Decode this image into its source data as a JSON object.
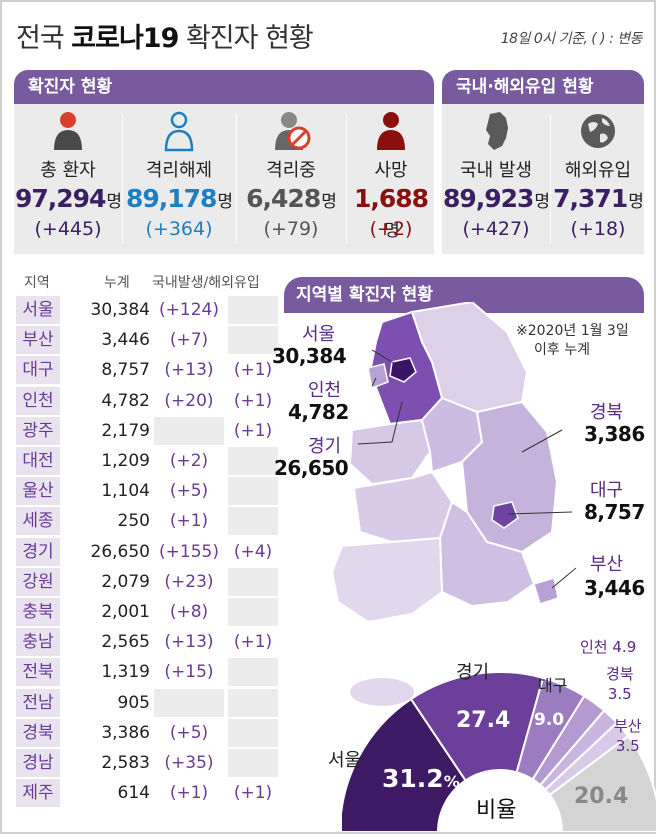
{
  "header": {
    "title_prefix": "전국",
    "title_bold": "코로나19",
    "title_suffix": "확진자 현황",
    "note": "18일 0시 기준, ( ) : 변동"
  },
  "confirmed_panel": {
    "title": "확진자 현황",
    "stats": [
      {
        "label": "총 환자",
        "value": "97,294",
        "unit": "명",
        "change": "(+445)",
        "color": "#3b1e63",
        "icon": "person-icon"
      },
      {
        "label": "격리해제",
        "value": "89,178",
        "unit": "명",
        "change": "(+364)",
        "color": "#1f7fc4",
        "icon": "person-outline-icon"
      },
      {
        "label": "격리중",
        "value": "6,428",
        "unit": "명",
        "change": "(+79)",
        "color": "#555555",
        "icon": "person-prohibited-icon"
      },
      {
        "label": "사망",
        "value": "1,688",
        "unit": "명",
        "change": "(+2)",
        "color": "#8a1010",
        "icon": "person-icon"
      }
    ]
  },
  "origin_panel": {
    "title": "국내·해외유입 현황",
    "stats": [
      {
        "label": "국내 발생",
        "value": "89,923",
        "unit": "명",
        "change": "(+427)",
        "color": "#3b1e63",
        "icon": "korea-map-icon"
      },
      {
        "label": "해외유입",
        "value": "7,371",
        "unit": "명",
        "change": "(+18)",
        "color": "#3b1e63",
        "icon": "globe-icon"
      }
    ]
  },
  "table": {
    "headers": {
      "region": "지역",
      "total": "누계",
      "dom_imp": "국내발생/해외유입"
    },
    "rows": [
      {
        "region": "서울",
        "total": "30,384",
        "dom": "(+124)",
        "imp": ""
      },
      {
        "region": "부산",
        "total": "3,446",
        "dom": "(+7)",
        "imp": ""
      },
      {
        "region": "대구",
        "total": "8,757",
        "dom": "(+13)",
        "imp": "(+1)"
      },
      {
        "region": "인천",
        "total": "4,782",
        "dom": "(+20)",
        "imp": "(+1)"
      },
      {
        "region": "광주",
        "total": "2,179",
        "dom": "",
        "imp": "(+1)"
      },
      {
        "region": "대전",
        "total": "1,209",
        "dom": "(+2)",
        "imp": ""
      },
      {
        "region": "울산",
        "total": "1,104",
        "dom": "(+5)",
        "imp": ""
      },
      {
        "region": "세종",
        "total": "250",
        "dom": "(+1)",
        "imp": ""
      },
      {
        "region": "경기",
        "total": "26,650",
        "dom": "(+155)",
        "imp": "(+4)"
      },
      {
        "region": "강원",
        "total": "2,079",
        "dom": "(+23)",
        "imp": ""
      },
      {
        "region": "충북",
        "total": "2,001",
        "dom": "(+8)",
        "imp": ""
      },
      {
        "region": "충남",
        "total": "2,565",
        "dom": "(+13)",
        "imp": "(+1)"
      },
      {
        "region": "전북",
        "total": "1,319",
        "dom": "(+15)",
        "imp": ""
      },
      {
        "region": "전남",
        "total": "905",
        "dom": "",
        "imp": ""
      },
      {
        "region": "경북",
        "total": "3,386",
        "dom": "(+5)",
        "imp": ""
      },
      {
        "region": "경남",
        "total": "2,583",
        "dom": "(+35)",
        "imp": ""
      },
      {
        "region": "제주",
        "total": "614",
        "dom": "(+1)",
        "imp": "(+1)"
      }
    ]
  },
  "map": {
    "title": "지역별 확진자 현황",
    "note_line1": "※2020년 1월 3일",
    "note_line2": "이후 누계",
    "labels": {
      "seoul": {
        "name": "서울",
        "value": "30,384"
      },
      "incheon": {
        "name": "인천",
        "value": "4,782"
      },
      "gyeonggi": {
        "name": "경기",
        "value": "26,650"
      },
      "gyeongbuk": {
        "name": "경북",
        "value": "3,386"
      },
      "daegu": {
        "name": "대구",
        "value": "8,757"
      },
      "busan": {
        "name": "부산",
        "value": "3,446"
      }
    },
    "colors": {
      "dark": "#4a1f7a",
      "mid": "#8a62b4",
      "light": "#c7b5dc",
      "pale": "#ddd1ea"
    }
  },
  "ratio": {
    "center_label": "비율",
    "segments": [
      {
        "name": "서울",
        "label": "31.2",
        "suffix": "%",
        "value": 31.2,
        "color": "#3d1a63"
      },
      {
        "name": "경기",
        "label": "27.4",
        "value": 27.4,
        "color": "#6b3f9a"
      },
      {
        "name": "대구",
        "label": "9.0",
        "value": 9.0,
        "color": "#9b7cc0"
      },
      {
        "name": "인천",
        "label": "4.9",
        "value": 4.9,
        "color": "#b59ad2"
      },
      {
        "name": "경북",
        "label": "3.5",
        "value": 3.5,
        "color": "#c9b5e0"
      },
      {
        "name": "부산",
        "label": "3.5",
        "value": 3.5,
        "color": "#d9caea"
      },
      {
        "name": "",
        "label": "20.4",
        "value": 20.4,
        "color": "#d4d4d4"
      }
    ]
  }
}
